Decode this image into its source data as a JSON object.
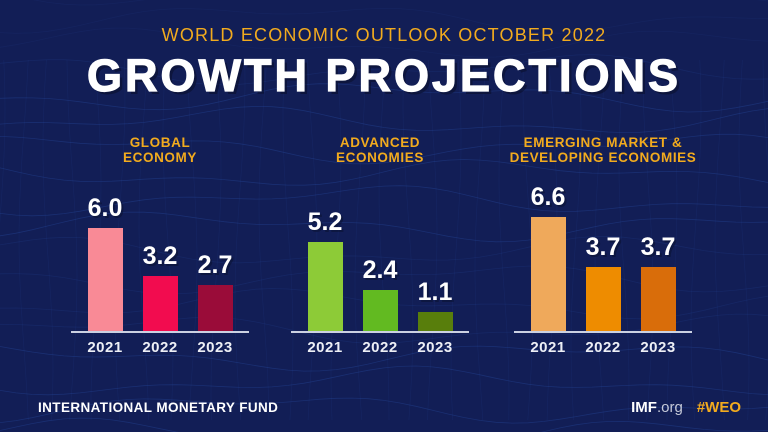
{
  "header": {
    "eyebrow": "WORLD ECONOMIC OUTLOOK OCTOBER 2022",
    "title": "GROWTH PROJECTIONS"
  },
  "footer": {
    "org": "INTERNATIONAL MONETARY FUND",
    "imf_bold": "IMF",
    "imf_suffix": ".org",
    "hashtag": "#WEO"
  },
  "colors": {
    "background": "#121E56",
    "mesh_line": "#2D54AE",
    "gold": "#F2AB1E",
    "white": "#FFFFFF",
    "axis": "#CBD1E2"
  },
  "chart_data": [
    {
      "type": "bar",
      "title_lines": [
        "GLOBAL",
        "ECONOMY"
      ],
      "categories": [
        "2021",
        "2022",
        "2023"
      ],
      "values": [
        6.0,
        3.2,
        2.7
      ],
      "bar_colors": [
        "#F98A96",
        "#F20C4F",
        "#9A0C39"
      ],
      "ylim": [
        0,
        7
      ],
      "grid": false,
      "legend": "none"
    },
    {
      "type": "bar",
      "title_lines": [
        "ADVANCED",
        "ECONOMIES"
      ],
      "categories": [
        "2021",
        "2022",
        "2023"
      ],
      "values": [
        5.2,
        2.4,
        1.1
      ],
      "bar_colors": [
        "#8DCB37",
        "#62BA21",
        "#587E0C"
      ],
      "ylim": [
        0,
        7
      ],
      "grid": false,
      "legend": "none"
    },
    {
      "type": "bar",
      "title_lines": [
        "EMERGING MARKET &",
        "DEVELOPING ECONOMIES"
      ],
      "categories": [
        "2021",
        "2022",
        "2023"
      ],
      "values": [
        6.6,
        3.7,
        3.7
      ],
      "bar_colors": [
        "#EFA95B",
        "#EE8C00",
        "#D96D0A"
      ],
      "ylim": [
        0,
        7
      ],
      "grid": false,
      "legend": "none"
    }
  ]
}
